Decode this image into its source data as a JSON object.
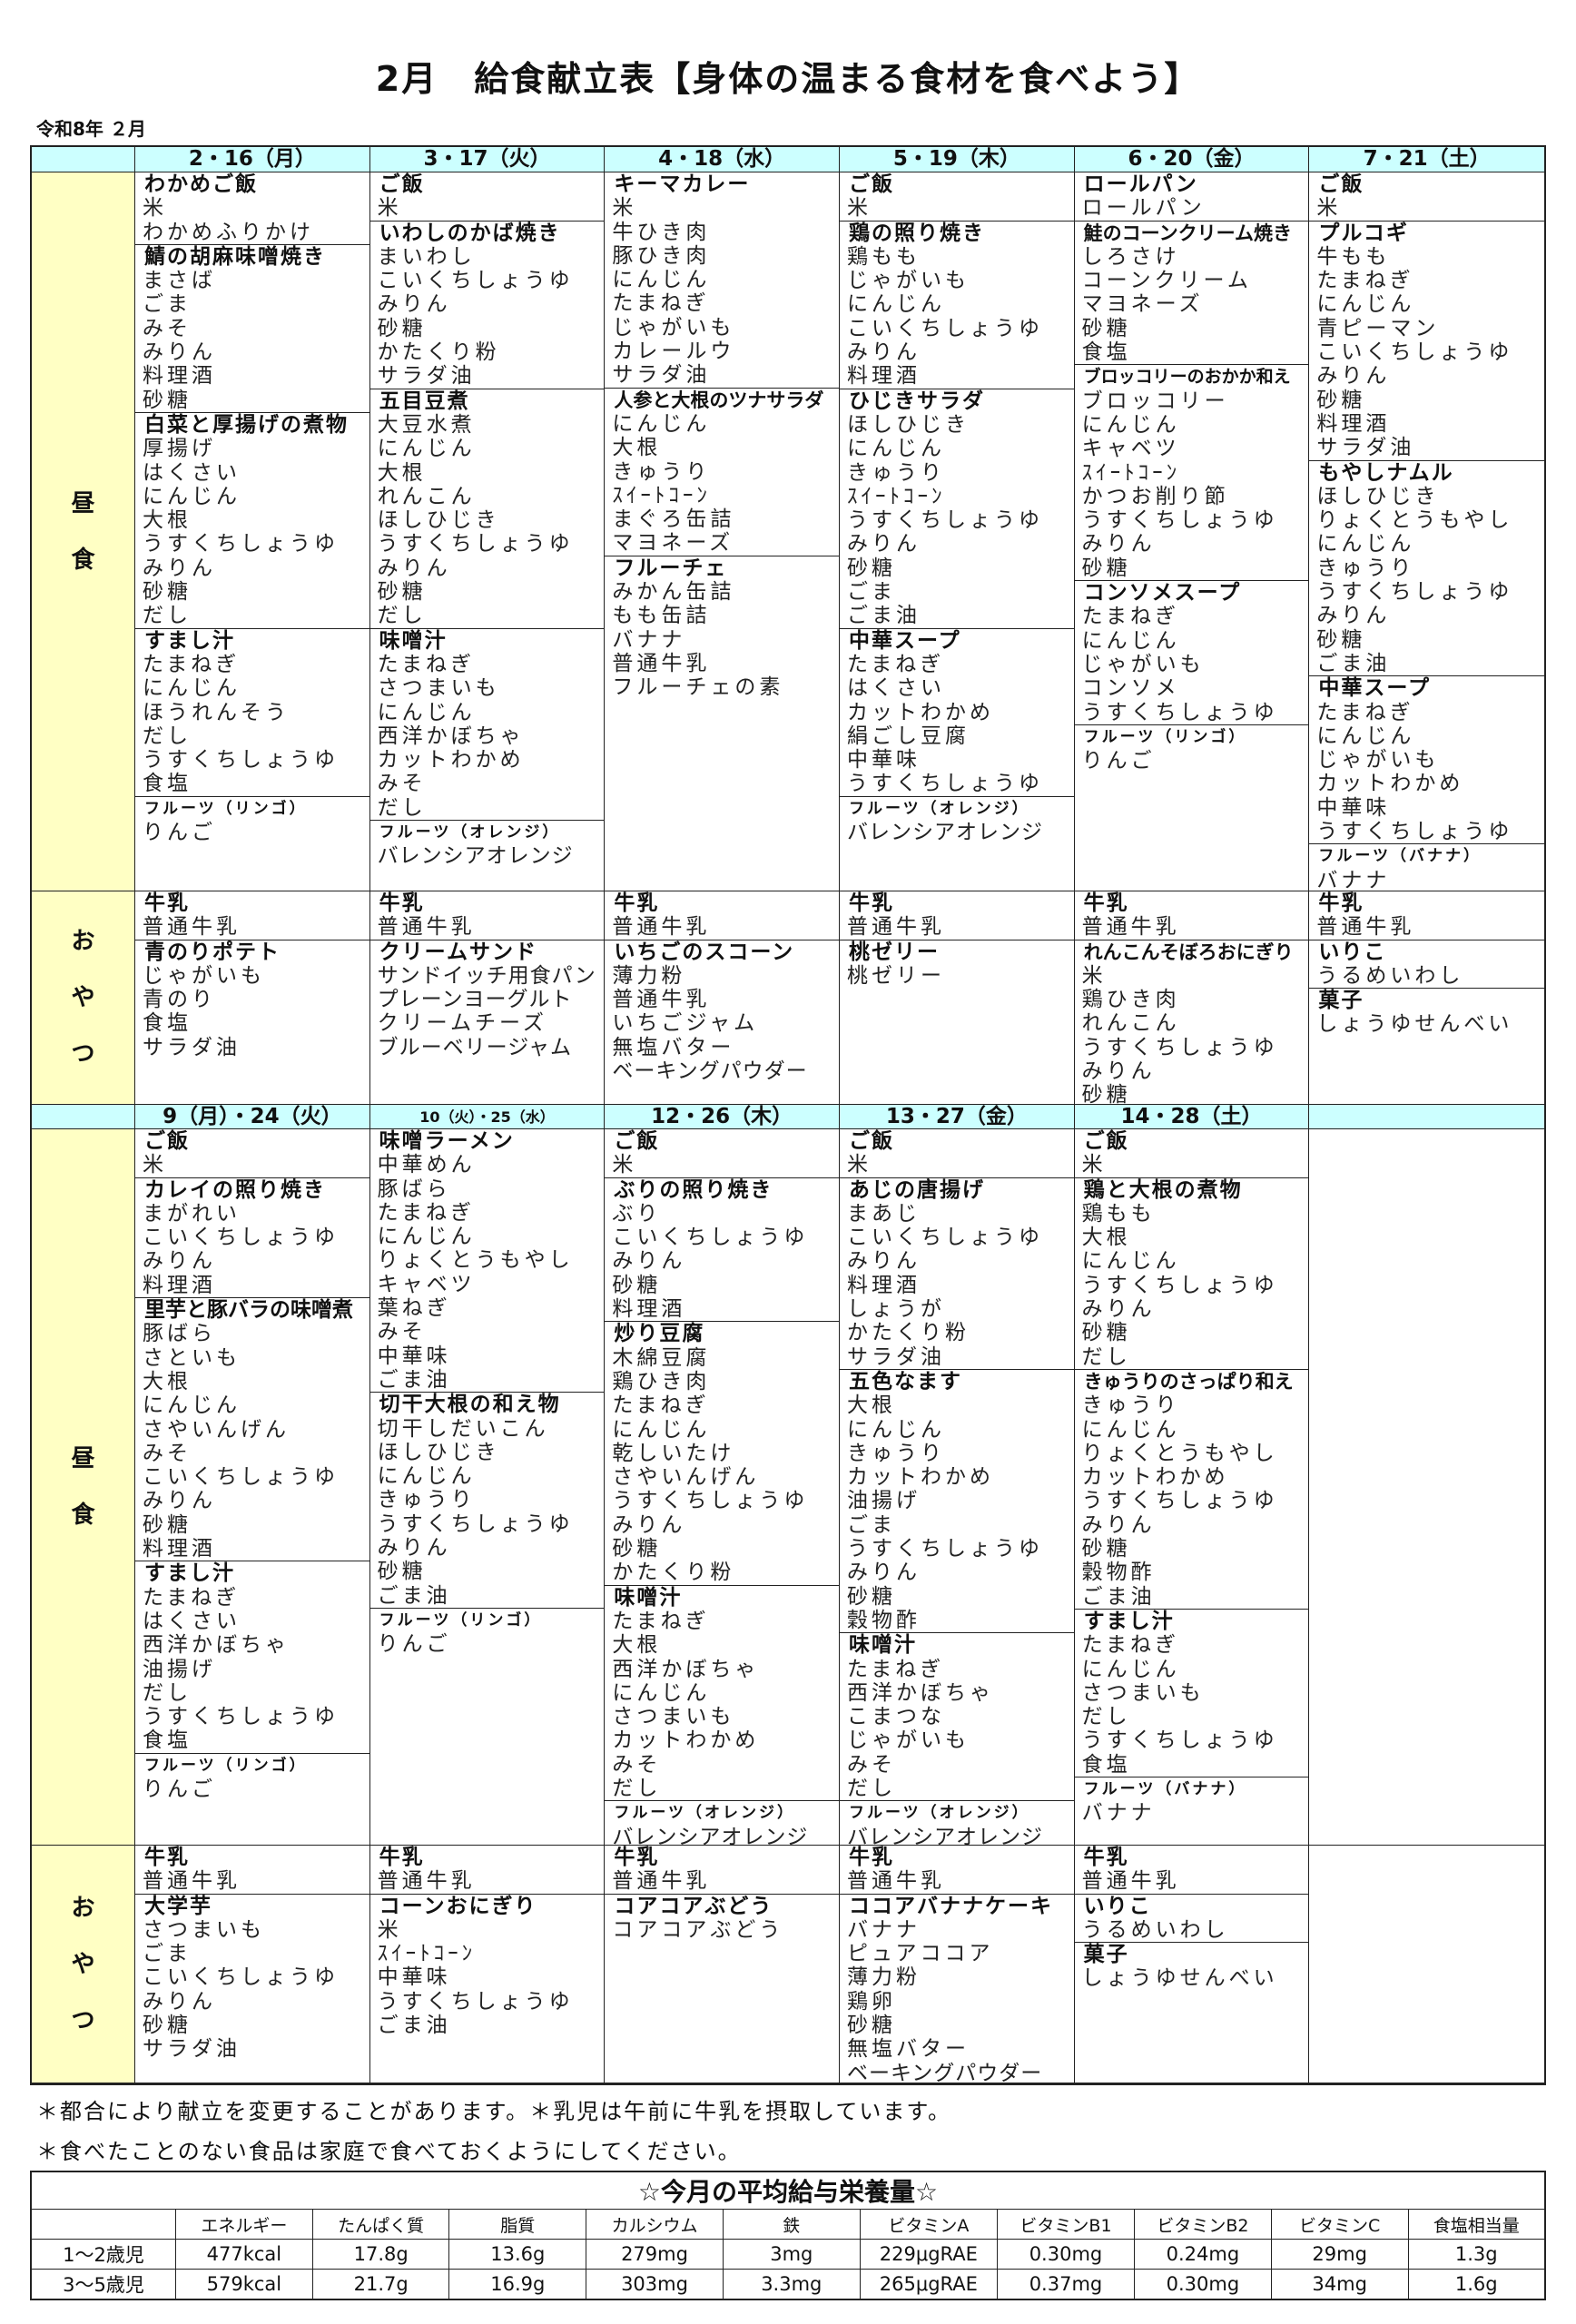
{
  "title": "2月　給食献立表【身体の温まる食材を食べよう】",
  "era_month": "令和8年 ２月",
  "labels": {
    "lunch": [
      "昼",
      "食"
    ],
    "snack": [
      "お",
      "や",
      "つ"
    ]
  },
  "colors": {
    "header_bg": "#ccffff",
    "label_bg": "#ffffc4"
  },
  "weeks": [
    {
      "days": [
        "2・16（月）",
        "3・17（火）",
        "4・18（水）",
        "5・19（木）",
        "6・20（金）",
        "7・21（土）"
      ],
      "lunch": [
        [
          {
            "name": "わかめご飯",
            "items": [
              "米",
              "わかめふりかけ"
            ]
          },
          {
            "name": "鯖の胡麻味噌焼き",
            "items": [
              "まさば",
              "ごま",
              "みそ",
              "みりん",
              "料理酒",
              "砂糖"
            ]
          },
          {
            "name": "白菜と厚揚げの煮物",
            "items": [
              "厚揚げ",
              "はくさい",
              "にんじん",
              "大根",
              "うすくちしょうゆ",
              "みりん",
              "砂糖",
              "だし"
            ]
          },
          {
            "name": "すまし汁",
            "items": [
              "たまねぎ",
              "にんじん",
              "ほうれんそう",
              "だし",
              "うすくちしょうゆ",
              "食塩"
            ]
          },
          {
            "name": "フルーツ（リンゴ）",
            "items": [
              "りんご"
            ]
          }
        ],
        [
          {
            "name": "ご飯",
            "items": [
              "米"
            ]
          },
          {
            "name": "いわしのかば焼き",
            "items": [
              "まいわし",
              "こいくちしょうゆ",
              "みりん",
              "砂糖",
              "かたくり粉",
              "サラダ油"
            ]
          },
          {
            "name": "五目豆煮",
            "items": [
              "大豆水煮",
              "にんじん",
              "大根",
              "れんこん",
              "ほしひじき",
              "うすくちしょうゆ",
              "みりん",
              "砂糖",
              "だし"
            ]
          },
          {
            "name": "味噌汁",
            "items": [
              "たまねぎ",
              "さつまいも",
              "にんじん",
              "西洋かぼちゃ",
              "カットわかめ",
              "みそ",
              "だし"
            ]
          },
          {
            "name": "フルーツ（オレンジ）",
            "items": [
              "バレンシアオレンジ"
            ]
          }
        ],
        [
          {
            "name": "キーマカレー",
            "items": [
              "米",
              "牛ひき肉",
              "豚ひき肉",
              "にんじん",
              "たまねぎ",
              "じゃがいも",
              "カレールウ",
              "サラダ油"
            ]
          },
          {
            "name": "人参と大根のツナサラダ",
            "items": [
              "にんじん",
              "大根",
              "きゅうり",
              "ｽｲｰﾄｺｰﾝ",
              "まぐろ缶詰",
              "マヨネーズ"
            ]
          },
          {
            "name": "フルーチェ",
            "items": [
              "みかん缶詰",
              "もも缶詰",
              "バナナ",
              "普通牛乳",
              "フルーチェの素"
            ]
          }
        ],
        [
          {
            "name": "ご飯",
            "items": [
              "米"
            ]
          },
          {
            "name": "鶏の照り焼き",
            "items": [
              "鶏もも",
              "じゃがいも",
              "にんじん",
              "こいくちしょうゆ",
              "みりん",
              "料理酒"
            ]
          },
          {
            "name": "ひじきサラダ",
            "items": [
              "ほしひじき",
              "にんじん",
              "きゅうり",
              "ｽｲｰﾄｺｰﾝ",
              "うすくちしょうゆ",
              "みりん",
              "砂糖",
              "ごま",
              "ごま油"
            ]
          },
          {
            "name": "中華スープ",
            "items": [
              "たまねぎ",
              "はくさい",
              "カットわかめ",
              "絹ごし豆腐",
              "中華味",
              "うすくちしょうゆ"
            ]
          },
          {
            "name": "フルーツ（オレンジ）",
            "items": [
              "バレンシアオレンジ"
            ]
          }
        ],
        [
          {
            "name": "ロールパン",
            "items": [
              "ロールパン"
            ]
          },
          {
            "name": "鮭のコーンクリーム焼き",
            "items": [
              "しろさけ",
              "コーンクリーム",
              "マヨネーズ",
              "砂糖",
              "食塩"
            ]
          },
          {
            "name": "ブロッコリーのおかか和え",
            "items": [
              "ブロッコリー",
              "にんじん",
              "キャベツ",
              "ｽｲｰﾄｺｰﾝ",
              "かつお削り節",
              "うすくちしょうゆ",
              "みりん",
              "砂糖"
            ]
          },
          {
            "name": "コンソメスープ",
            "items": [
              "たまねぎ",
              "にんじん",
              "じゃがいも",
              "コンソメ",
              "うすくちしょうゆ"
            ]
          },
          {
            "name": "フルーツ（リンゴ）",
            "items": [
              "りんご"
            ]
          }
        ],
        [
          {
            "name": "ご飯",
            "items": [
              "米"
            ]
          },
          {
            "name": "プルコギ",
            "items": [
              "牛もも",
              "たまねぎ",
              "にんじん",
              "青ピーマン",
              "こいくちしょうゆ",
              "みりん",
              "砂糖",
              "料理酒",
              "サラダ油"
            ]
          },
          {
            "name": "もやしナムル",
            "items": [
              "ほしひじき",
              "りょくとうもやし",
              "にんじん",
              "きゅうり",
              "うすくちしょうゆ",
              "みりん",
              "砂糖",
              "ごま油"
            ]
          },
          {
            "name": "中華スープ",
            "items": [
              "たまねぎ",
              "にんじん",
              "じゃがいも",
              "カットわかめ",
              "中華味",
              "うすくちしょうゆ"
            ]
          },
          {
            "name": "フルーツ（バナナ）",
            "items": [
              "バナナ"
            ]
          }
        ]
      ],
      "snack": [
        [
          {
            "name": "牛乳",
            "items": [
              "普通牛乳"
            ]
          },
          {
            "name": "青のりポテト",
            "items": [
              "じゃがいも",
              "青のり",
              "食塩",
              "サラダ油"
            ]
          }
        ],
        [
          {
            "name": "牛乳",
            "items": [
              "普通牛乳"
            ]
          },
          {
            "name": "クリームサンド",
            "items": [
              "サンドイッチ用食パン",
              "プレーンヨーグルト",
              "クリームチーズ",
              "ブルーベリージャム"
            ]
          }
        ],
        [
          {
            "name": "牛乳",
            "items": [
              "普通牛乳"
            ]
          },
          {
            "name": "いちごのスコーン",
            "items": [
              "薄力粉",
              "普通牛乳",
              "いちごジャム",
              "無塩バター",
              "ベーキングパウダー"
            ]
          }
        ],
        [
          {
            "name": "牛乳",
            "items": [
              "普通牛乳"
            ]
          },
          {
            "name": "桃ゼリー",
            "items": [
              "桃ゼリー"
            ]
          }
        ],
        [
          {
            "name": "牛乳",
            "items": [
              "普通牛乳"
            ]
          },
          {
            "name": "れんこんそぼろおにぎり",
            "items": [
              "米",
              "鶏ひき肉",
              "れんこん",
              "うすくちしょうゆ",
              "みりん",
              "砂糖"
            ]
          }
        ],
        [
          {
            "name": "牛乳",
            "items": [
              "普通牛乳"
            ]
          },
          {
            "name": "いりこ",
            "items": [
              "うるめいわし"
            ]
          },
          {
            "name": "菓子",
            "items": [
              "しょうゆせんべい"
            ]
          }
        ]
      ]
    },
    {
      "days": [
        "9（月）・24（火）",
        "10（火）・25（水）",
        "12・26（木）",
        "13・27（金）",
        "14・28（土）",
        ""
      ],
      "lunch": [
        [
          {
            "name": "ご飯",
            "items": [
              "米"
            ]
          },
          {
            "name": "カレイの照り焼き",
            "items": [
              "まがれい",
              "こいくちしょうゆ",
              "みりん",
              "料理酒"
            ]
          },
          {
            "name": "里芋と豚バラの味噌煮",
            "items": [
              "豚ばら",
              "さといも",
              "大根",
              "にんじん",
              "さやいんげん",
              "みそ",
              "こいくちしょうゆ",
              "みりん",
              "砂糖",
              "料理酒"
            ]
          },
          {
            "name": "すまし汁",
            "items": [
              "たまねぎ",
              "はくさい",
              "西洋かぼちゃ",
              "油揚げ",
              "だし",
              "うすくちしょうゆ",
              "食塩"
            ]
          },
          {
            "name": "フルーツ（リンゴ）",
            "items": [
              "りんご"
            ]
          }
        ],
        [
          {
            "name": "味噌ラーメン",
            "items": [
              "中華めん",
              "豚ばら",
              "たまねぎ",
              "にんじん",
              "りょくとうもやし",
              "キャベツ",
              "葉ねぎ",
              "みそ",
              "中華味",
              "ごま油"
            ]
          },
          {
            "name": "切干大根の和え物",
            "items": [
              "切干しだいこん",
              "ほしひじき",
              "にんじん",
              "きゅうり",
              "うすくちしょうゆ",
              "みりん",
              "砂糖",
              "ごま油"
            ]
          },
          {
            "name": "フルーツ（リンゴ）",
            "items": [
              "りんご"
            ]
          }
        ],
        [
          {
            "name": "ご飯",
            "items": [
              "米"
            ]
          },
          {
            "name": "ぶりの照り焼き",
            "items": [
              "ぶり",
              "こいくちしょうゆ",
              "みりん",
              "砂糖",
              "料理酒"
            ]
          },
          {
            "name": "炒り豆腐",
            "items": [
              "木綿豆腐",
              "鶏ひき肉",
              "たまねぎ",
              "にんじん",
              "乾しいたけ",
              "さやいんげん",
              "うすくちしょうゆ",
              "みりん",
              "砂糖",
              "かたくり粉"
            ]
          },
          {
            "name": "味噌汁",
            "items": [
              "たまねぎ",
              "大根",
              "西洋かぼちゃ",
              "にんじん",
              "さつまいも",
              "カットわかめ",
              "みそ",
              "だし"
            ]
          },
          {
            "name": "フルーツ（オレンジ）",
            "items": [
              "バレンシアオレンジ"
            ]
          }
        ],
        [
          {
            "name": "ご飯",
            "items": [
              "米"
            ]
          },
          {
            "name": "あじの唐揚げ",
            "items": [
              "まあじ",
              "こいくちしょうゆ",
              "みりん",
              "料理酒",
              "しょうが",
              "かたくり粉",
              "サラダ油"
            ]
          },
          {
            "name": "五色なます",
            "items": [
              "大根",
              "にんじん",
              "きゅうり",
              "カットわかめ",
              "油揚げ",
              "ごま",
              "うすくちしょうゆ",
              "みりん",
              "砂糖",
              "穀物酢"
            ]
          },
          {
            "name": "味噌汁",
            "items": [
              "たまねぎ",
              "西洋かぼちゃ",
              "こまつな",
              "じゃがいも",
              "みそ",
              "だし"
            ]
          },
          {
            "name": "フルーツ（オレンジ）",
            "items": [
              "バレンシアオレンジ"
            ]
          }
        ],
        [
          {
            "name": "ご飯",
            "items": [
              "米"
            ]
          },
          {
            "name": "鶏と大根の煮物",
            "items": [
              "鶏もも",
              "大根",
              "にんじん",
              "うすくちしょうゆ",
              "みりん",
              "砂糖",
              "だし"
            ]
          },
          {
            "name": "きゅうりのさっぱり和え",
            "items": [
              "きゅうり",
              "にんじん",
              "りょくとうもやし",
              "カットわかめ",
              "うすくちしょうゆ",
              "みりん",
              "砂糖",
              "穀物酢",
              "ごま油"
            ]
          },
          {
            "name": "すまし汁",
            "items": [
              "たまねぎ",
              "にんじん",
              "さつまいも",
              "だし",
              "うすくちしょうゆ",
              "食塩"
            ]
          },
          {
            "name": "フルーツ（バナナ）",
            "items": [
              "バナナ"
            ]
          }
        ],
        []
      ],
      "snack": [
        [
          {
            "name": "牛乳",
            "items": [
              "普通牛乳"
            ]
          },
          {
            "name": "大学芋",
            "items": [
              "さつまいも",
              "ごま",
              "こいくちしょうゆ",
              "みりん",
              "砂糖",
              "サラダ油"
            ]
          }
        ],
        [
          {
            "name": "牛乳",
            "items": [
              "普通牛乳"
            ]
          },
          {
            "name": "コーンおにぎり",
            "items": [
              "米",
              "ｽｲｰﾄｺｰﾝ",
              "中華味",
              "うすくちしょうゆ",
              "ごま油"
            ]
          }
        ],
        [
          {
            "name": "牛乳",
            "items": [
              "普通牛乳"
            ]
          },
          {
            "name": "コアコアぶどう",
            "items": [
              "コアコアぶどう"
            ]
          }
        ],
        [
          {
            "name": "牛乳",
            "items": [
              "普通牛乳"
            ]
          },
          {
            "name": "ココアバナナケーキ",
            "items": [
              "バナナ",
              "ピュアココア",
              "薄力粉",
              "鶏卵",
              "砂糖",
              "無塩バター",
              "ベーキングパウダー"
            ]
          }
        ],
        [
          {
            "name": "牛乳",
            "items": [
              "普通牛乳"
            ]
          },
          {
            "name": "いりこ",
            "items": [
              "うるめいわし"
            ]
          },
          {
            "name": "菓子",
            "items": [
              "しょうゆせんべい"
            ]
          }
        ],
        []
      ]
    }
  ],
  "notes": [
    "＊都合により献立を変更することがあります。＊乳児は午前に牛乳を摂取しています。",
    "＊食べたことのない食品は家庭で食べておくようにしてください。"
  ],
  "nutrition": {
    "title": "☆今月の平均給与栄養量☆",
    "headers": [
      "",
      "エネルギー",
      "たんぱく質",
      "脂質",
      "カルシウム",
      "鉄",
      "ビタミンA",
      "ビタミンB1",
      "ビタミンB2",
      "ビタミンC",
      "食塩相当量"
    ],
    "rows": [
      [
        "1～2歳児",
        "477kcal",
        "17.8g",
        "13.6g",
        "279mg",
        "3mg",
        "229μgRAE",
        "0.30mg",
        "0.24mg",
        "29mg",
        "1.3g"
      ],
      [
        "3～5歳児",
        "579kcal",
        "21.7g",
        "16.9g",
        "303mg",
        "3.3mg",
        "265μgRAE",
        "0.37mg",
        "0.30mg",
        "34mg",
        "1.6g"
      ]
    ]
  }
}
